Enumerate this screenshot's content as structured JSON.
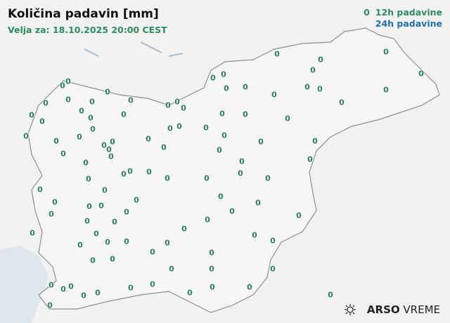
{
  "header": {
    "title": "Količina padavin [mm]",
    "valid_for": "Velja za: 18.10.2025 20:00 CEST"
  },
  "legend": {
    "sample_value": "0",
    "label_12h": "12h padavine",
    "label_24h": "24h padavine",
    "color_12h": "#2e8b62",
    "color_24h": "#1f6fa8"
  },
  "stations": {
    "values": [
      "0",
      "0",
      "0",
      "0",
      "0",
      "0",
      "0",
      "0",
      "0",
      "0",
      "0",
      "0",
      "0",
      "0",
      "0",
      "0",
      "0",
      "0",
      "0",
      "0",
      "0",
      "0",
      "0",
      "0",
      "0",
      "0",
      "0",
      "0",
      "0",
      "0",
      "0",
      "0",
      "0",
      "0",
      "0",
      "0",
      "0",
      "0",
      "0",
      "0",
      "0",
      "0",
      "0",
      "0",
      "0",
      "0",
      "0",
      "0",
      "0",
      "0",
      "0",
      "0",
      "0",
      "0",
      "0",
      "0",
      "0",
      "0",
      "0",
      "0",
      "0",
      "0",
      "0",
      "0",
      "0",
      "0",
      "0",
      "0",
      "0",
      "0",
      "0",
      "0",
      "0",
      "0",
      "0",
      "0",
      "0",
      "0",
      "0",
      "0",
      "0",
      "0",
      "0",
      "0",
      "0",
      "0",
      "0",
      "0",
      "0",
      "0",
      "0",
      "0",
      "0",
      "0",
      "0",
      "0",
      "0",
      "0",
      "0",
      "0",
      "0",
      "0",
      "0",
      "0"
    ]
  },
  "logo": {
    "brand": "ARSO",
    "product": "VREME",
    "icon": "sun-cloud-icon"
  }
}
